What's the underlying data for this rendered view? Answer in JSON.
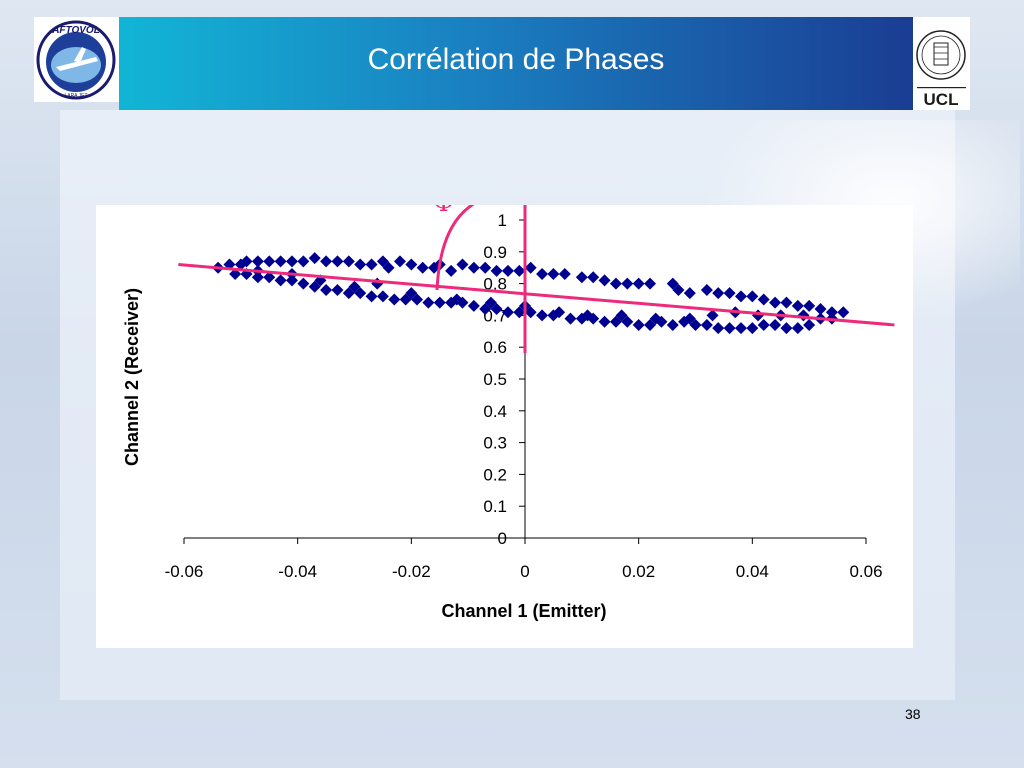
{
  "slide": {
    "title": "Corrélation de Phases",
    "page_number": "38",
    "phi_symbol": "Φ",
    "logo_left_text": "AFTOVOL",
    "logo_left_subtext": "LARA JET",
    "logo_right_text": "UCL"
  },
  "colors": {
    "title_bar_start": "#12b5d6",
    "title_bar_end": "#1a3d92",
    "marker": "#000090",
    "trend_line": "#ee2a7b"
  },
  "chart_data": {
    "type": "scatter",
    "xlabel": "Channel 1 (Emitter)",
    "ylabel": "Channel 2 (Receiver)",
    "xlim": [
      -0.06,
      0.06
    ],
    "ylim": [
      0,
      1
    ],
    "x_ticks": [
      "-0.06",
      "-0.04",
      "-0.02",
      "0",
      "0.02",
      "0.04",
      "0.06"
    ],
    "y_ticks": [
      "0",
      "0.1",
      "0.2",
      "0.3",
      "0.4",
      "0.5",
      "0.6",
      "0.7",
      "0.8",
      "0.9",
      "1"
    ],
    "marker": "diamond",
    "grid": false,
    "legend": false,
    "trend_line": {
      "x": [
        -0.061,
        0.065
      ],
      "y": [
        0.86,
        0.67
      ]
    },
    "series": [
      {
        "points": [
          [
            -0.054,
            0.85
          ],
          [
            -0.052,
            0.86
          ],
          [
            -0.05,
            0.86
          ],
          [
            -0.049,
            0.87
          ],
          [
            -0.047,
            0.87
          ],
          [
            -0.045,
            0.87
          ],
          [
            -0.043,
            0.87
          ],
          [
            -0.041,
            0.87
          ],
          [
            -0.039,
            0.87
          ],
          [
            -0.037,
            0.88
          ],
          [
            -0.035,
            0.87
          ],
          [
            -0.033,
            0.87
          ],
          [
            -0.031,
            0.87
          ],
          [
            -0.029,
            0.86
          ],
          [
            -0.027,
            0.86
          ],
          [
            -0.025,
            0.87
          ],
          [
            -0.024,
            0.85
          ],
          [
            -0.022,
            0.87
          ],
          [
            -0.02,
            0.86
          ],
          [
            -0.018,
            0.85
          ],
          [
            -0.016,
            0.85
          ],
          [
            -0.015,
            0.86
          ],
          [
            -0.013,
            0.84
          ],
          [
            -0.011,
            0.86
          ],
          [
            -0.009,
            0.85
          ],
          [
            -0.007,
            0.85
          ],
          [
            -0.005,
            0.84
          ],
          [
            -0.003,
            0.84
          ],
          [
            -0.001,
            0.84
          ],
          [
            0.001,
            0.85
          ],
          [
            0.003,
            0.83
          ],
          [
            0.005,
            0.83
          ],
          [
            0.007,
            0.83
          ],
          [
            0.01,
            0.82
          ],
          [
            0.012,
            0.82
          ],
          [
            0.014,
            0.81
          ],
          [
            0.016,
            0.8
          ],
          [
            0.018,
            0.8
          ],
          [
            0.02,
            0.8
          ],
          [
            0.022,
            0.8
          ],
          [
            0.026,
            0.8
          ],
          [
            0.027,
            0.78
          ],
          [
            0.029,
            0.77
          ],
          [
            0.032,
            0.78
          ],
          [
            0.034,
            0.77
          ],
          [
            0.036,
            0.77
          ],
          [
            0.038,
            0.76
          ],
          [
            0.04,
            0.76
          ],
          [
            0.042,
            0.75
          ],
          [
            0.044,
            0.74
          ],
          [
            0.046,
            0.74
          ],
          [
            0.048,
            0.73
          ],
          [
            0.05,
            0.73
          ],
          [
            0.052,
            0.72
          ],
          [
            0.054,
            0.71
          ],
          [
            0.056,
            0.71
          ],
          [
            -0.051,
            0.83
          ],
          [
            -0.049,
            0.83
          ],
          [
            -0.047,
            0.82
          ],
          [
            -0.045,
            0.82
          ],
          [
            -0.043,
            0.81
          ],
          [
            -0.041,
            0.81
          ],
          [
            -0.039,
            0.8
          ],
          [
            -0.037,
            0.79
          ],
          [
            -0.035,
            0.78
          ],
          [
            -0.033,
            0.78
          ],
          [
            -0.031,
            0.77
          ],
          [
            -0.029,
            0.77
          ],
          [
            -0.027,
            0.76
          ],
          [
            -0.025,
            0.76
          ],
          [
            -0.023,
            0.75
          ],
          [
            -0.021,
            0.75
          ],
          [
            -0.019,
            0.75
          ],
          [
            -0.017,
            0.74
          ],
          [
            -0.015,
            0.74
          ],
          [
            -0.013,
            0.74
          ],
          [
            -0.011,
            0.74
          ],
          [
            -0.009,
            0.73
          ],
          [
            -0.007,
            0.72
          ],
          [
            -0.005,
            0.72
          ],
          [
            -0.003,
            0.71
          ],
          [
            -0.001,
            0.71
          ],
          [
            0.001,
            0.71
          ],
          [
            0.003,
            0.7
          ],
          [
            0.005,
            0.7
          ],
          [
            0.008,
            0.69
          ],
          [
            0.01,
            0.69
          ],
          [
            0.012,
            0.69
          ],
          [
            0.014,
            0.68
          ],
          [
            0.016,
            0.68
          ],
          [
            0.018,
            0.68
          ],
          [
            0.02,
            0.67
          ],
          [
            0.022,
            0.67
          ],
          [
            0.024,
            0.68
          ],
          [
            0.026,
            0.67
          ],
          [
            0.028,
            0.68
          ],
          [
            0.03,
            0.67
          ],
          [
            0.032,
            0.67
          ],
          [
            0.034,
            0.66
          ],
          [
            0.036,
            0.66
          ],
          [
            0.038,
            0.66
          ],
          [
            0.04,
            0.66
          ],
          [
            0.042,
            0.67
          ],
          [
            0.044,
            0.67
          ],
          [
            0.046,
            0.66
          ],
          [
            0.048,
            0.66
          ],
          [
            0.05,
            0.67
          ],
          [
            0.052,
            0.69
          ],
          [
            0.054,
            0.69
          ],
          [
            -0.047,
            0.84
          ],
          [
            -0.041,
            0.83
          ],
          [
            -0.036,
            0.81
          ],
          [
            -0.03,
            0.79
          ],
          [
            -0.026,
            0.8
          ],
          [
            -0.02,
            0.77
          ],
          [
            -0.012,
            0.75
          ],
          [
            -0.006,
            0.74
          ],
          [
            0.0,
            0.73
          ],
          [
            0.006,
            0.71
          ],
          [
            0.011,
            0.7
          ],
          [
            0.017,
            0.7
          ],
          [
            0.023,
            0.69
          ],
          [
            0.029,
            0.69
          ],
          [
            0.033,
            0.7
          ],
          [
            0.037,
            0.71
          ],
          [
            0.041,
            0.7
          ],
          [
            0.045,
            0.7
          ],
          [
            0.049,
            0.7
          ]
        ]
      }
    ]
  }
}
